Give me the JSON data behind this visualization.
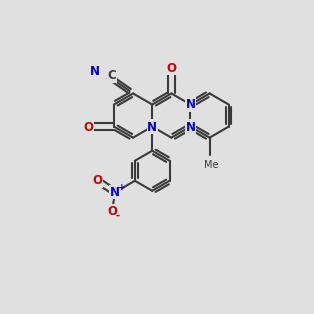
{
  "bg_color": "#e0e0e0",
  "bond_color": "#3a3a3a",
  "N_color": "#0000cc",
  "O_color": "#cc0000",
  "C_color": "#3a3a3a",
  "lw": 1.5,
  "dbo": 0.012,
  "r": 0.075
}
